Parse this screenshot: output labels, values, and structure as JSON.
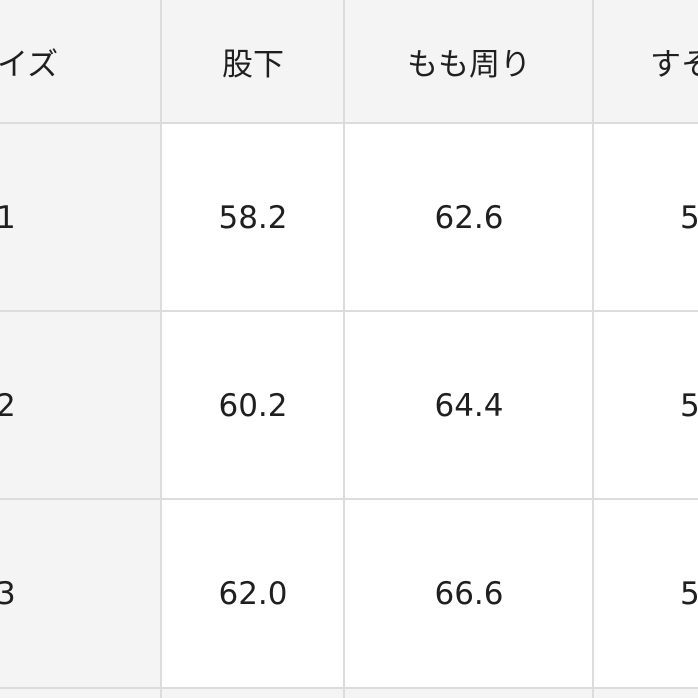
{
  "table": {
    "headers": [
      "イズ",
      "股下",
      "もも周り",
      "すそ"
    ],
    "rows": [
      [
        "1",
        "58.2",
        "62.6",
        "5"
      ],
      [
        "2",
        "60.2",
        "64.4",
        "5"
      ],
      [
        "3",
        "62.0",
        "66.6",
        "5"
      ]
    ]
  },
  "colors": {
    "header_bg": "#f4f4f5",
    "border": "#dcdcdf",
    "text": "#1f1f1f"
  }
}
